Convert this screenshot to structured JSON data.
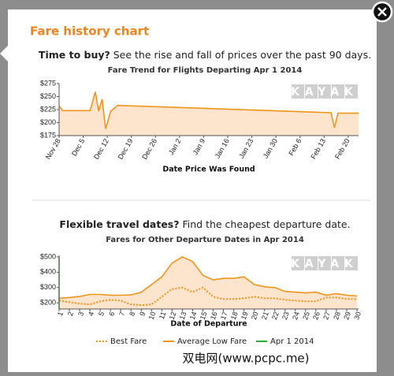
{
  "modal_title": "Fare history chart",
  "footer_watermark": "双电网(www.pcpc.me)",
  "chart_data": [
    {
      "type": "line",
      "heading_bold": "Time to buy?",
      "heading": " See the rise and fall of prices over the past 90 days.",
      "title": "Fare Trend for Flights Departing Apr 1 2014",
      "x_label": "Date Price Was Found",
      "watermark": "KAYAK",
      "x": [
        0,
        1,
        9,
        10.5,
        11.5,
        12.5,
        13.5,
        15,
        17,
        79,
        80,
        81,
        87
      ],
      "series": [
        {
          "color": "#f0941c",
          "values": [
            232,
            223,
            223,
            259,
            222,
            245,
            188,
            222,
            233,
            219,
            190,
            218,
            218
          ]
        }
      ],
      "area": true,
      "xlim": [
        0,
        87
      ],
      "xticks": [
        {
          "value": 0,
          "label": "Nov 28"
        },
        {
          "value": 7,
          "label": "Dec 5"
        },
        {
          "value": 14,
          "label": "Dec 12"
        },
        {
          "value": 21,
          "label": "Dec 19"
        },
        {
          "value": 28,
          "label": "Dec 26"
        },
        {
          "value": 35,
          "label": "Jan 2"
        },
        {
          "value": 42,
          "label": "Jan 9"
        },
        {
          "value": 49,
          "label": "Jan 16"
        },
        {
          "value": 56,
          "label": "Jan 23"
        },
        {
          "value": 63,
          "label": "Jan 30"
        },
        {
          "value": 70,
          "label": "Feb 6"
        },
        {
          "value": 77,
          "label": "Feb 13"
        },
        {
          "value": 84,
          "label": "Feb 20"
        }
      ],
      "ylim": [
        175,
        275
      ],
      "yticks": [
        {
          "value": 175,
          "label": "$175"
        },
        {
          "value": 200,
          "label": "$200"
        },
        {
          "value": 225,
          "label": "$225"
        },
        {
          "value": 250,
          "label": "$250"
        },
        {
          "value": 275,
          "label": "$275"
        }
      ]
    },
    {
      "type": "line",
      "heading_bold": "Flexible travel dates?",
      "heading": " Find the cheapest departure date.",
      "title": "Fares for Other Departure Dates in Apr 2014",
      "x_label": "Date of Departure",
      "watermark": "KAYAK",
      "categories": [
        "1",
        "2",
        "3",
        "4",
        "5",
        "6",
        "7",
        "8",
        "9",
        "10",
        "11",
        "12",
        "13",
        "14",
        "15",
        "16",
        "17",
        "18",
        "19",
        "20",
        "21",
        "22",
        "23",
        "24",
        "25",
        "26",
        "27",
        "28",
        "29",
        "30"
      ],
      "series": [
        {
          "name": "Best Fare",
          "color": "#f0941c",
          "dash": true,
          "values": [
            215,
            205,
            195,
            190,
            210,
            220,
            215,
            190,
            185,
            190,
            240,
            290,
            300,
            270,
            300,
            240,
            225,
            225,
            230,
            240,
            230,
            230,
            220,
            215,
            210,
            210,
            235,
            235,
            225,
            225
          ]
        },
        {
          "name": "Average Low Fare",
          "color": "#f0941c",
          "area": true,
          "values": [
            230,
            235,
            242,
            255,
            255,
            250,
            250,
            252,
            270,
            320,
            370,
            460,
            500,
            470,
            380,
            350,
            360,
            360,
            370,
            320,
            305,
            300,
            275,
            270,
            265,
            270,
            250,
            260,
            250,
            245
          ]
        }
      ],
      "markers": [
        {
          "name": "Apr 1 2014",
          "color": "#33a933",
          "x": "1"
        }
      ],
      "ylim": [
        160,
        510
      ],
      "yticks": [
        {
          "value": 200,
          "label": "$200"
        },
        {
          "value": 300,
          "label": "$300"
        },
        {
          "value": 400,
          "label": "$400"
        },
        {
          "value": 500,
          "label": "$500"
        }
      ]
    }
  ]
}
